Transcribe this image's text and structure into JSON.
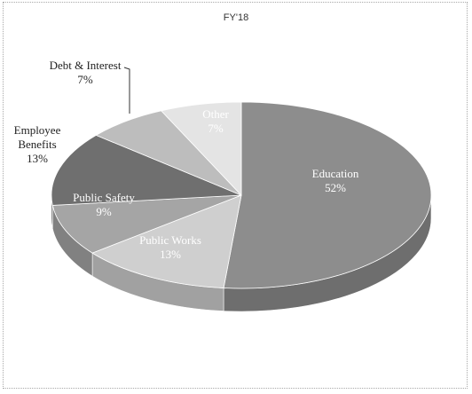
{
  "chart_data": {
    "type": "pie",
    "title": "FY'18",
    "slices": [
      {
        "label": "Education",
        "value": 52,
        "pct": "52%",
        "color": "#8d8d8d"
      },
      {
        "label": "Public Works",
        "value": 13,
        "pct": "13%",
        "color": "#cfcfcf"
      },
      {
        "label": "Public Safety",
        "value": 9,
        "pct": "9%",
        "color": "#a5a5a5"
      },
      {
        "label": "Employee Benefits",
        "value": 13,
        "pct": "13%",
        "color": "#6f6f6f"
      },
      {
        "label": "Debt & Interest",
        "value": 7,
        "pct": "7%",
        "color": "#bdbdbd"
      },
      {
        "label": "Other",
        "value": 7,
        "pct": "7%",
        "color": "#e4e4e4"
      }
    ]
  }
}
